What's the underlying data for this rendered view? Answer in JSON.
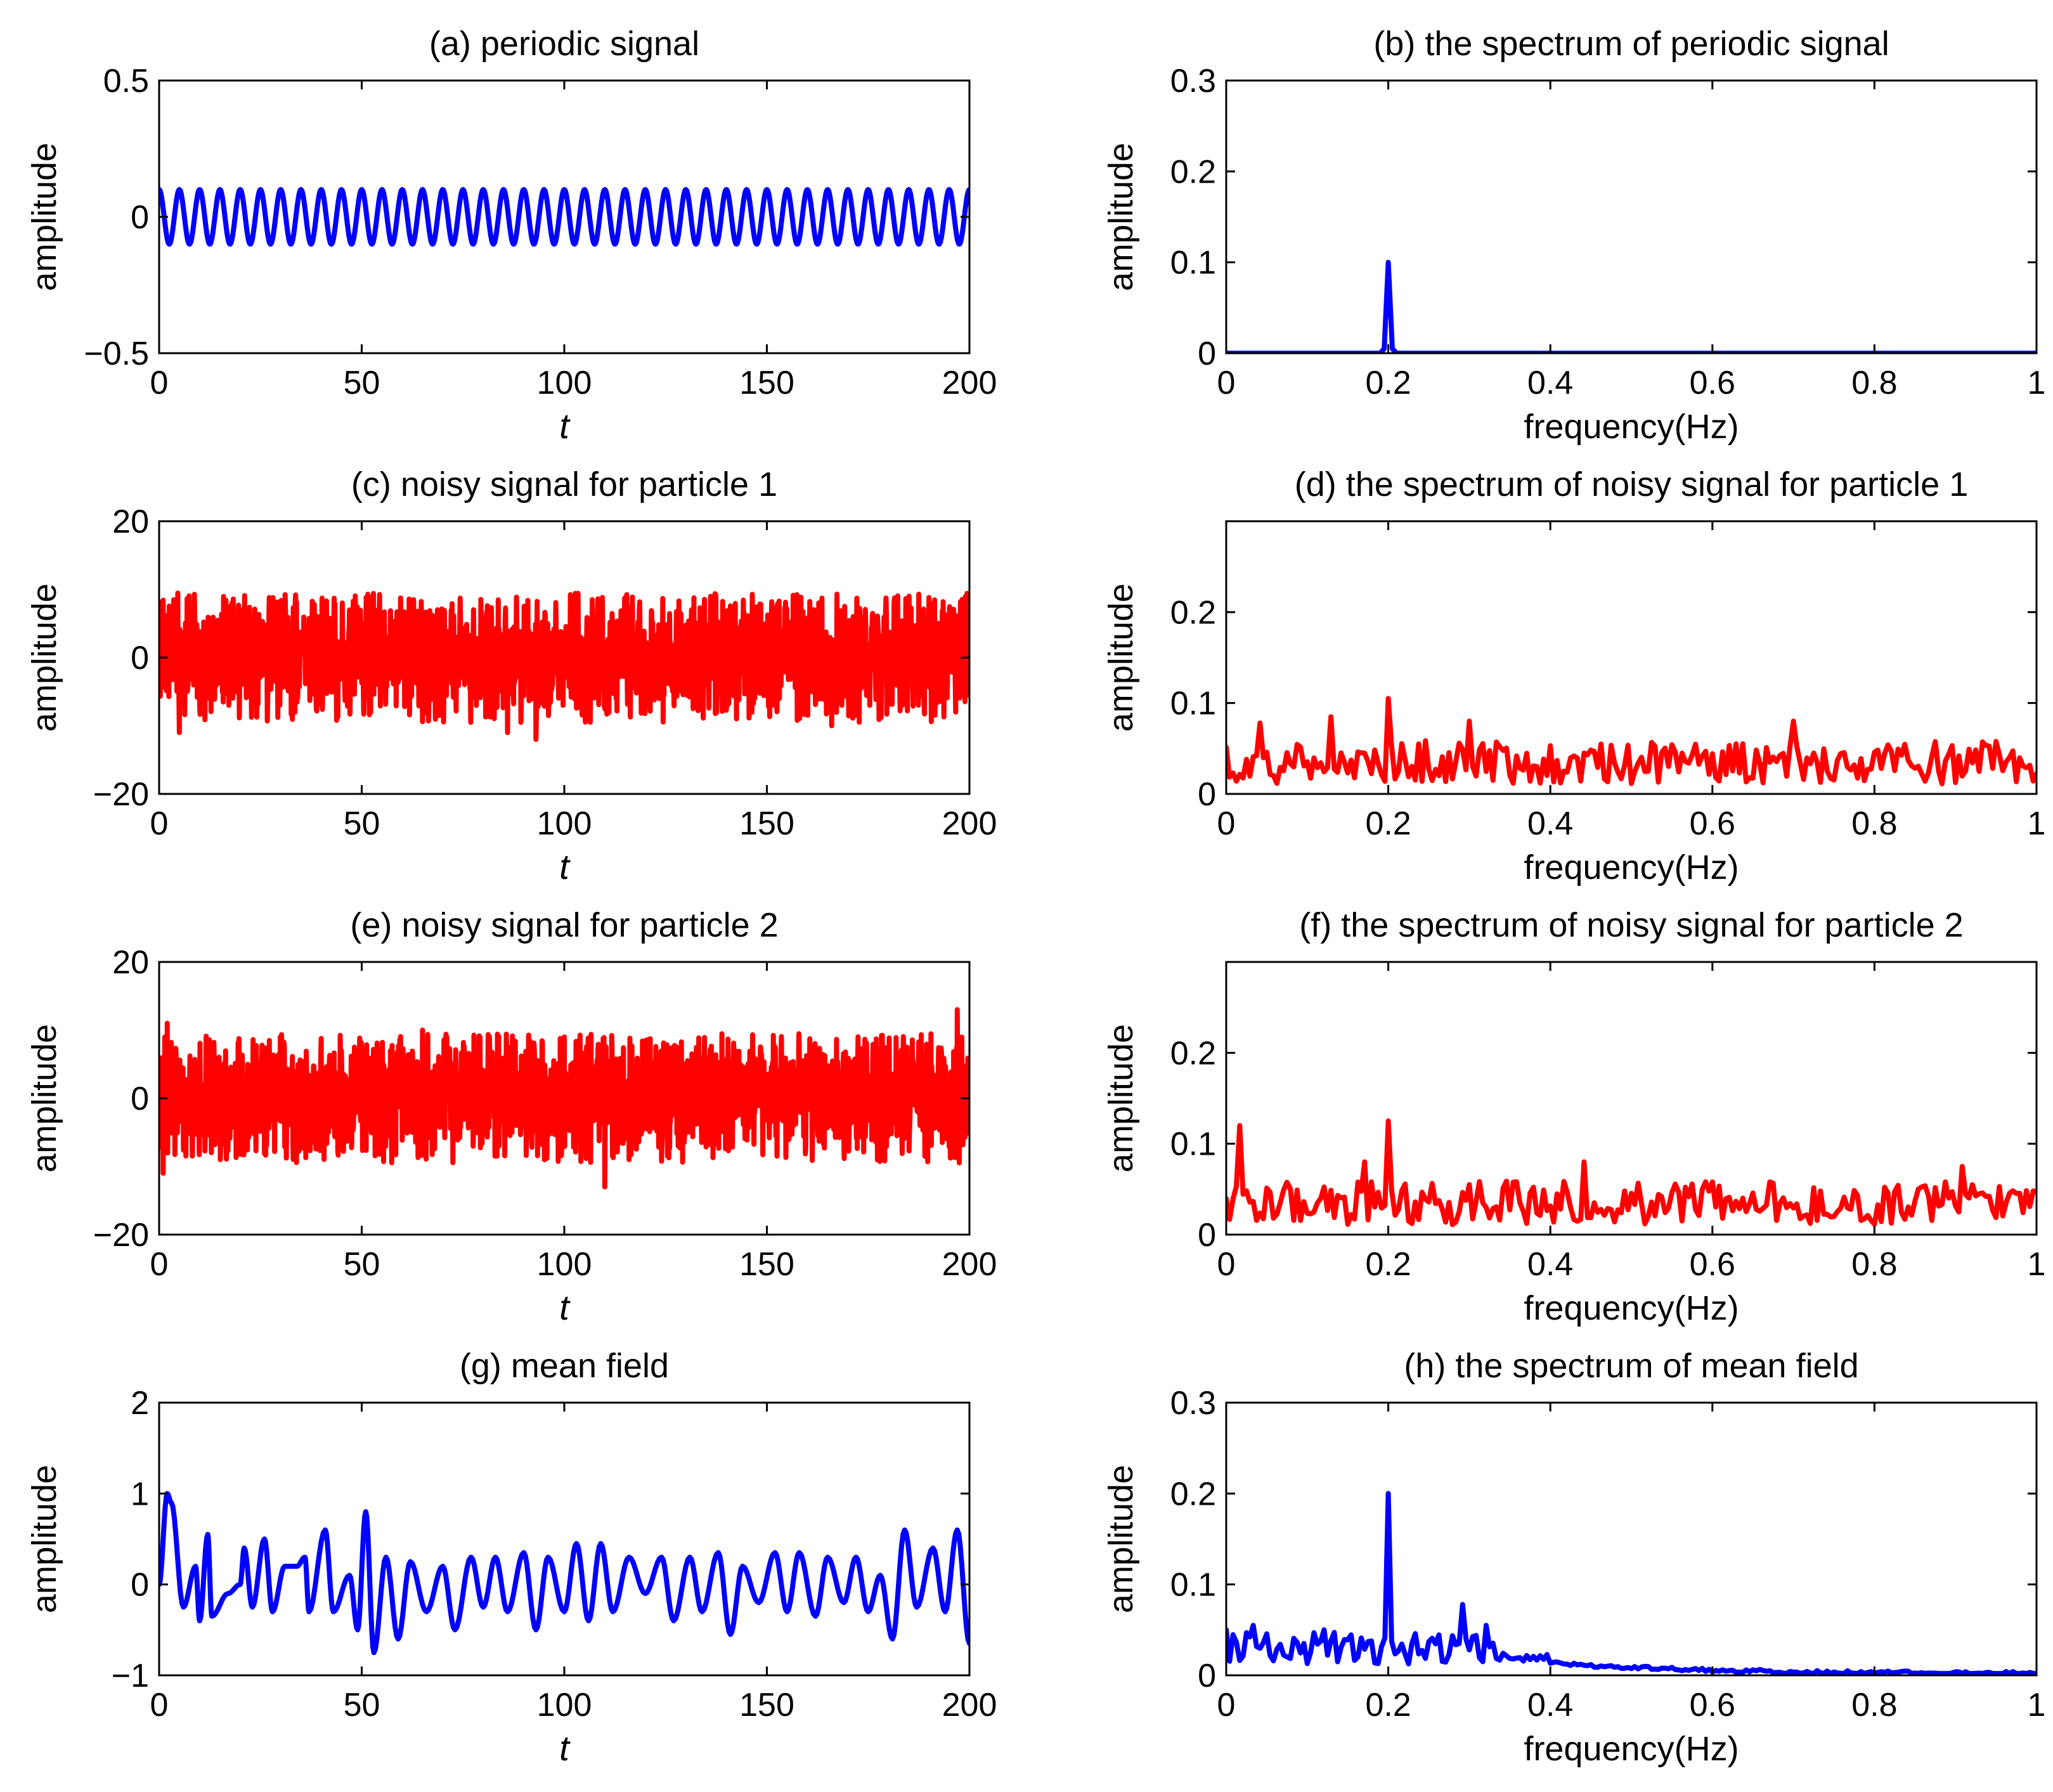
{
  "figure": {
    "colors": {
      "blue": "#0000ff",
      "red": "#ff0000",
      "axis": "#000000"
    }
  },
  "chart_data": [
    {
      "id": "a",
      "type": "line",
      "title": "(a) periodic signal",
      "xlabel": "t",
      "xlabel_italic": true,
      "ylabel": "amplitude",
      "xlim": [
        0,
        200
      ],
      "ylim": [
        -0.5,
        0.5
      ],
      "xticks": [
        0,
        50,
        100,
        150,
        200
      ],
      "yticks": [
        -0.5,
        0,
        0.5
      ],
      "xtick_labels": [
        "0",
        "50",
        "100",
        "150",
        "200"
      ],
      "ytick_labels": [
        "−0.5",
        "0",
        "0.5"
      ],
      "color": "#0000ff",
      "series": [
        {
          "name": "periodic signal",
          "kind": "sine",
          "amplitude": 0.1,
          "frequency": 0.2,
          "points": 1600
        }
      ]
    },
    {
      "id": "b",
      "type": "line",
      "title": "(b) the spectrum of periodic signal",
      "xlabel": "frequency(Hz)",
      "xlabel_italic": false,
      "ylabel": "amplitude",
      "xlim": [
        0,
        1
      ],
      "ylim": [
        0,
        0.3
      ],
      "xticks": [
        0,
        0.2,
        0.4,
        0.6,
        0.8,
        1
      ],
      "yticks": [
        0,
        0.1,
        0.2,
        0.3
      ],
      "xtick_labels": [
        "0",
        "0.2",
        "0.4",
        "0.6",
        "0.8",
        "1"
      ],
      "ytick_labels": [
        "0",
        "0.1",
        "0.2",
        "0.3"
      ],
      "color": "#0000ff",
      "series": [
        {
          "name": "spectrum",
          "x": [
            0,
            0.19,
            0.195,
            0.2,
            0.205,
            0.21,
            1
          ],
          "y": [
            0,
            0,
            0.005,
            0.1,
            0.005,
            0,
            0
          ]
        }
      ]
    },
    {
      "id": "c",
      "type": "line",
      "title": "(c) noisy signal for particle 1",
      "xlabel": "t",
      "xlabel_italic": true,
      "ylabel": "amplitude",
      "xlim": [
        0,
        200
      ],
      "ylim": [
        -20,
        20
      ],
      "xticks": [
        0,
        50,
        100,
        150,
        200
      ],
      "yticks": [
        -20,
        0,
        20
      ],
      "xtick_labels": [
        "0",
        "50",
        "100",
        "150",
        "200"
      ],
      "ytick_labels": [
        "−20",
        "0",
        "20"
      ],
      "color": "#ff0000",
      "series": [
        {
          "name": "noisy signal 1",
          "kind": "noise",
          "envelope": 9.5,
          "extremes": [
            [
              93,
              -12
            ],
            [
              86,
              -11
            ],
            [
              5,
              -11
            ],
            [
              166,
              -10
            ]
          ],
          "points": 2000
        }
      ]
    },
    {
      "id": "d",
      "type": "line",
      "title": "(d) the spectrum of noisy signal for particle 1",
      "xlabel": "frequency(Hz)",
      "xlabel_italic": false,
      "ylabel": "amplitude",
      "xlim": [
        0,
        1
      ],
      "ylim": [
        0,
        0.3
      ],
      "xticks": [
        0,
        0.2,
        0.4,
        0.6,
        0.8,
        1
      ],
      "yticks": [
        0,
        0.1,
        0.2
      ],
      "xtick_labels": [
        "0",
        "0.2",
        "0.4",
        "0.6",
        "0.8",
        "1"
      ],
      "ytick_labels": [
        "0",
        "0.1",
        "0.2"
      ],
      "color": "#ff0000",
      "series": [
        {
          "name": "spectrum 1",
          "kind": "noise-spectrum",
          "base": 0.035,
          "spread": 0.03,
          "peaks": [
            [
              0.2,
              0.105
            ],
            [
              0.13,
              0.085
            ],
            [
              0.04,
              0.078
            ],
            [
              0.3,
              0.08
            ],
            [
              0.7,
              0.08
            ]
          ],
          "points": 240
        }
      ]
    },
    {
      "id": "e",
      "type": "line",
      "title": "(e) noisy signal for particle 2",
      "xlabel": "t",
      "xlabel_italic": true,
      "ylabel": "amplitude",
      "xlim": [
        0,
        200
      ],
      "ylim": [
        -20,
        20
      ],
      "xticks": [
        0,
        50,
        100,
        150,
        200
      ],
      "yticks": [
        -20,
        0,
        20
      ],
      "xtick_labels": [
        "0",
        "50",
        "100",
        "150",
        "200"
      ],
      "ytick_labels": [
        "−20",
        "0",
        "20"
      ],
      "color": "#ff0000",
      "series": [
        {
          "name": "noisy signal 2",
          "kind": "noise",
          "envelope": 9.5,
          "extremes": [
            [
              197,
              13
            ],
            [
              2,
              11
            ],
            [
              110,
              -13
            ],
            [
              1,
              -11
            ],
            [
              65,
              10
            ]
          ],
          "points": 2000
        }
      ]
    },
    {
      "id": "f",
      "type": "line",
      "title": "(f) the spectrum of noisy signal for particle 2",
      "xlabel": "frequency(Hz)",
      "xlabel_italic": false,
      "ylabel": "amplitude",
      "xlim": [
        0,
        1
      ],
      "ylim": [
        0,
        0.3
      ],
      "xticks": [
        0,
        0.2,
        0.4,
        0.6,
        0.8,
        1
      ],
      "yticks": [
        0,
        0.1,
        0.2
      ],
      "xtick_labels": [
        "0",
        "0.2",
        "0.4",
        "0.6",
        "0.8",
        "1"
      ],
      "ytick_labels": [
        "0",
        "0.1",
        "0.2"
      ],
      "color": "#ff0000",
      "series": [
        {
          "name": "spectrum 2",
          "kind": "noise-spectrum",
          "base": 0.035,
          "spread": 0.03,
          "peaks": [
            [
              0.2,
              0.125
            ],
            [
              0.015,
              0.12
            ],
            [
              0.17,
              0.08
            ],
            [
              0.44,
              0.08
            ],
            [
              0.91,
              0.075
            ]
          ],
          "points": 240
        }
      ]
    },
    {
      "id": "g",
      "type": "line",
      "title": "(g) mean field",
      "xlabel": "t",
      "xlabel_italic": true,
      "ylabel": "amplitude",
      "xlim": [
        0,
        200
      ],
      "ylim": [
        -1,
        2
      ],
      "xticks": [
        0,
        50,
        100,
        150,
        200
      ],
      "yticks": [
        -1,
        0,
        1,
        2
      ],
      "xtick_labels": [
        "0",
        "50",
        "100",
        "150",
        "200"
      ],
      "ytick_labels": [
        "−1",
        "0",
        "1",
        "2"
      ],
      "color": "#0000ff",
      "series": [
        {
          "name": "mean field",
          "kind": "smooth",
          "anchors": [
            [
              0,
              0
            ],
            [
              2,
              1.0
            ],
            [
              3,
              0.9
            ],
            [
              6,
              -0.25
            ],
            [
              9,
              0.2
            ],
            [
              10,
              -0.4
            ],
            [
              12,
              0.55
            ],
            [
              13,
              -0.35
            ],
            [
              17,
              -0.1
            ],
            [
              20,
              0.0
            ],
            [
              21,
              0.4
            ],
            [
              23,
              -0.25
            ],
            [
              26,
              0.5
            ],
            [
              28,
              -0.3
            ],
            [
              31,
              0.2
            ],
            [
              34,
              0.2
            ],
            [
              36,
              0.3
            ],
            [
              37,
              -0.3
            ],
            [
              41,
              0.6
            ],
            [
              43,
              -0.3
            ],
            [
              47,
              0.1
            ],
            [
              49,
              -0.5
            ],
            [
              51,
              0.8
            ],
            [
              53,
              -0.75
            ],
            [
              56,
              0.3
            ],
            [
              59,
              -0.6
            ],
            [
              62,
              0.25
            ],
            [
              66,
              -0.3
            ],
            [
              70,
              0.2
            ],
            [
              73,
              -0.5
            ],
            [
              77,
              0.3
            ],
            [
              80,
              -0.25
            ],
            [
              83,
              0.3
            ],
            [
              86,
              -0.3
            ],
            [
              90,
              0.35
            ],
            [
              93,
              -0.5
            ],
            [
              96,
              0.3
            ],
            [
              100,
              -0.3
            ],
            [
              103,
              0.45
            ],
            [
              106,
              -0.4
            ],
            [
              109,
              0.45
            ],
            [
              112,
              -0.3
            ],
            [
              116,
              0.3
            ],
            [
              120,
              -0.1
            ],
            [
              124,
              0.3
            ],
            [
              127,
              -0.4
            ],
            [
              131,
              0.3
            ],
            [
              134,
              -0.3
            ],
            [
              138,
              0.35
            ],
            [
              141,
              -0.55
            ],
            [
              144,
              0.2
            ],
            [
              148,
              -0.2
            ],
            [
              152,
              0.35
            ],
            [
              155,
              -0.3
            ],
            [
              158,
              0.35
            ],
            [
              162,
              -0.35
            ],
            [
              165,
              0.3
            ],
            [
              169,
              -0.2
            ],
            [
              172,
              0.3
            ],
            [
              175,
              -0.3
            ],
            [
              178,
              0.1
            ],
            [
              181,
              -0.6
            ],
            [
              184,
              0.6
            ],
            [
              187,
              -0.25
            ],
            [
              191,
              0.4
            ],
            [
              194,
              -0.3
            ],
            [
              197,
              0.6
            ],
            [
              200,
              -0.65
            ]
          ]
        }
      ]
    },
    {
      "id": "h",
      "type": "line",
      "title": "(h) the spectrum of mean field",
      "xlabel": "frequency(Hz)",
      "xlabel_italic": false,
      "ylabel": "amplitude",
      "xlim": [
        0,
        1
      ],
      "ylim": [
        0,
        0.3
      ],
      "xticks": [
        0,
        0.2,
        0.4,
        0.6,
        0.8,
        1
      ],
      "yticks": [
        0,
        0.1,
        0.2,
        0.3
      ],
      "xtick_labels": [
        "0",
        "0.2",
        "0.4",
        "0.6",
        "0.8",
        "1"
      ],
      "ytick_labels": [
        "0",
        "0.1",
        "0.2",
        "0.3"
      ],
      "color": "#0000ff",
      "series": [
        {
          "name": "mean field spectrum",
          "kind": "lowpass-spectrum",
          "peaks": [
            [
              0.2,
              0.2
            ],
            [
              0.29,
              0.078
            ],
            [
              0.32,
              0.055
            ],
            [
              0.035,
              0.055
            ],
            [
              0.0,
              0.05
            ],
            [
              0.12,
              0.05
            ]
          ],
          "base": 0.03,
          "cutoff": 0.4,
          "points": 240
        }
      ]
    }
  ]
}
